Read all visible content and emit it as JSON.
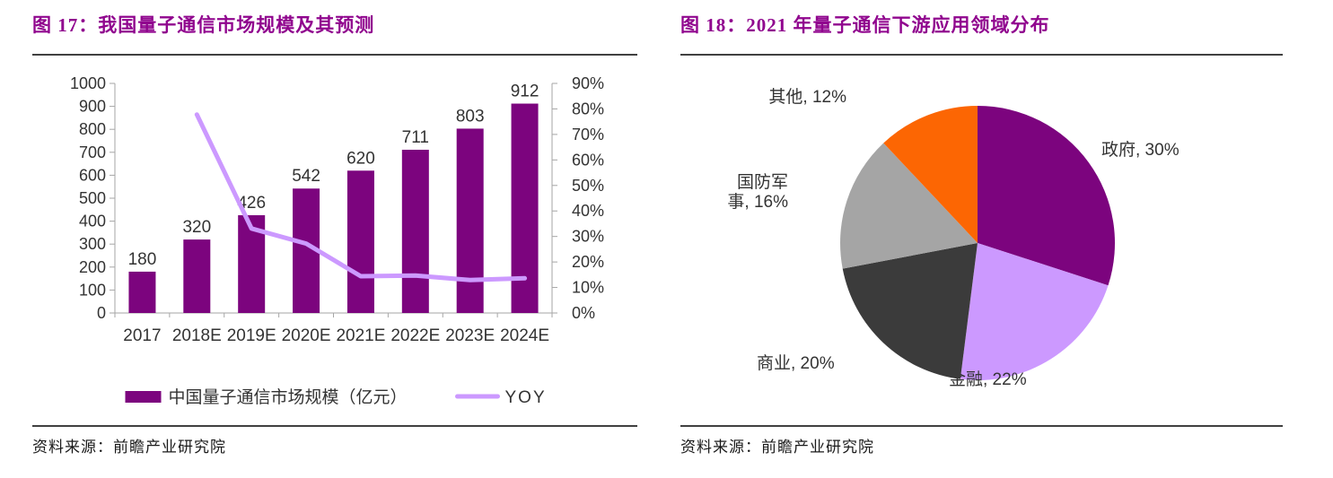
{
  "page": {
    "background": "#ffffff",
    "accent_purple": "#90058E",
    "rule_color": "#404040"
  },
  "figures": [
    {
      "title": "图 17：我国量子通信市场规模及其预测",
      "source_text": "资料来源：前瞻产业研究院"
    },
    {
      "title": "图 18：2021 年量子通信下游应用领域分布",
      "source_text": "资料来源：前瞻产业研究院"
    }
  ],
  "chart_data": [
    {
      "type": "bar",
      "subtype": "bar+line-combo",
      "categories": [
        "2017",
        "2018E",
        "2019E",
        "2020E",
        "2021E",
        "2022E",
        "2023E",
        "2024E"
      ],
      "series": [
        {
          "name": "中国量子通信市场规模（亿元）",
          "kind": "bar",
          "axis": "left",
          "color": "#7C047E",
          "values": [
            180,
            320,
            426,
            542,
            620,
            711,
            803,
            912
          ],
          "data_labels": [
            "180",
            "320",
            "426",
            "542",
            "620",
            "711",
            "803",
            "912"
          ]
        },
        {
          "name": "YOY",
          "kind": "line",
          "axis": "right",
          "color": "#CC99FF",
          "values": [
            null,
            77.8,
            33.1,
            27.2,
            14.4,
            14.7,
            12.9,
            13.6
          ]
        }
      ],
      "left_axis": {
        "min": 0,
        "max": 1000,
        "step": 100
      },
      "right_axis": {
        "min": 0,
        "max": 90,
        "step": 10,
        "suffix": "%"
      },
      "grid": false,
      "legend_position": "bottom",
      "axis_color": "#A6A6A6",
      "text_color": "#333333"
    },
    {
      "type": "pie",
      "start_angle_deg": 0,
      "direction": "clockwise",
      "slices": [
        {
          "label": "政府",
          "value": 30,
          "color": "#7C047E"
        },
        {
          "label": "金融",
          "value": 22,
          "color": "#CC99FF"
        },
        {
          "label": "商业",
          "value": 20,
          "color": "#3B3B3B"
        },
        {
          "label": "国防军事",
          "value": 16,
          "color": "#A5A5A5"
        },
        {
          "label": "其他",
          "value": 12,
          "color": "#FC6603"
        }
      ],
      "label_format": "{label}, {value}%",
      "text_color": "#333333",
      "legend": false
    }
  ]
}
